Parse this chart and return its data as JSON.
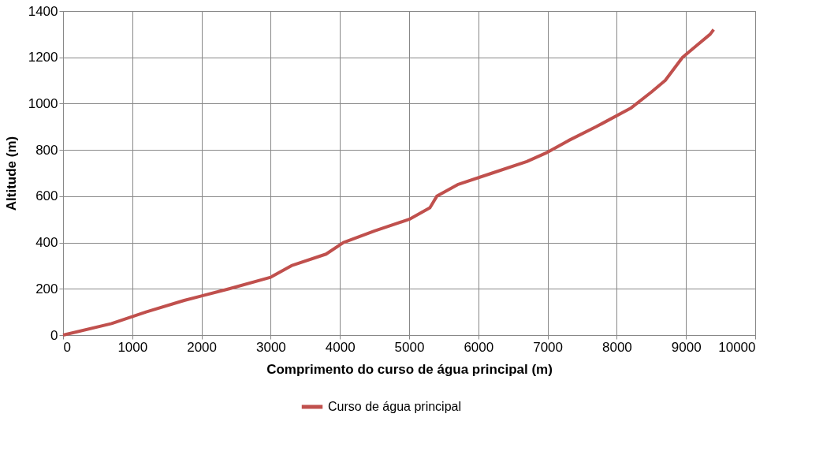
{
  "chart_data": {
    "type": "line",
    "xlabel": "Comprimento do curso de água principal (m)",
    "ylabel": "Altitude (m)",
    "x": [
      0,
      700,
      1200,
      1750,
      2400,
      3000,
      3300,
      3800,
      4050,
      4500,
      5000,
      5300,
      5400,
      5700,
      6200,
      6700,
      7000,
      7300,
      7700,
      8200,
      8500,
      8700,
      8950,
      9150,
      9350,
      9400
    ],
    "series": [
      {
        "name": "Curso de água principal",
        "color": "#c0504d",
        "values": [
          0,
          50,
          100,
          150,
          200,
          250,
          300,
          350,
          400,
          450,
          500,
          550,
          600,
          650,
          700,
          750,
          790,
          840,
          900,
          980,
          1050,
          1100,
          1200,
          1250,
          1300,
          1320
        ]
      }
    ],
    "xlim": [
      0,
      10000
    ],
    "xticks": [
      0,
      1000,
      2000,
      3000,
      4000,
      5000,
      6000,
      7000,
      8000,
      9000,
      10000
    ],
    "ylim": [
      0,
      1400
    ],
    "yticks": [
      0,
      200,
      400,
      600,
      800,
      1000,
      1200,
      1400
    ],
    "grid": true,
    "legend": "bottom",
    "marker": "none",
    "line_style": "solid"
  }
}
